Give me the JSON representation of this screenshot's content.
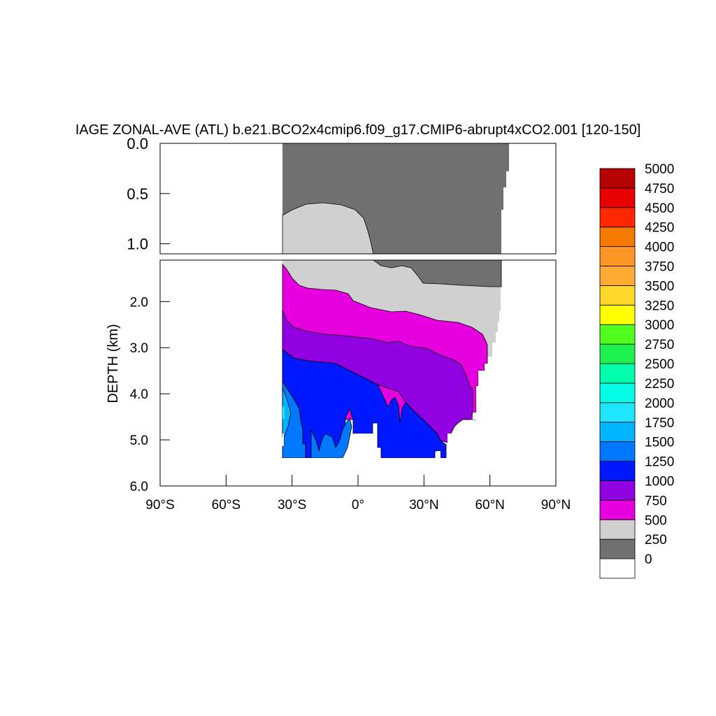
{
  "chart_data": {
    "type": "heatmap",
    "title": "IAGE ZONAL-AVE (ATL) b.e21.BCO2x4cmip6.f09_g17.CMIP6-abrupt4xCO2.001 [120-150]",
    "ylabel": "DEPTH (km)",
    "xlabel": "",
    "xlim": [
      -90,
      90
    ],
    "xticks": [
      "90°S",
      "60°S",
      "30°S",
      "0°",
      "30°N",
      "60°N",
      "90°N"
    ],
    "upper_panel": {
      "ylim": [
        0.0,
        1.1
      ],
      "yticks": [
        "0.0",
        "0.5",
        "1.0"
      ]
    },
    "lower_panel": {
      "ylim": [
        1.1,
        6.0
      ],
      "yticks": [
        "2.0",
        "3.0",
        "4.0",
        "5.0",
        "6.0"
      ]
    },
    "colorbar": {
      "levels": [
        "0",
        "250",
        "500",
        "750",
        "1000",
        "1250",
        "1500",
        "1750",
        "2000",
        "2250",
        "2500",
        "2750",
        "3000",
        "3250",
        "3500",
        "3750",
        "4000",
        "4250",
        "4500",
        "4750",
        "5000"
      ],
      "colors": [
        "#ffffff",
        "#707070",
        "#d0d0d0",
        "#e600e0",
        "#9000e0",
        "#0018ff",
        "#0078ff",
        "#00b4ff",
        "#1ee6ff",
        "#00ffe6",
        "#00ffaa",
        "#1ef050",
        "#50ff1e",
        "#ffff00",
        "#ffd728",
        "#ffaa32",
        "#ff9628",
        "#f57800",
        "#ff2800",
        "#e60000",
        "#b40000"
      ]
    },
    "bands": [
      {
        "value_range": "0-250",
        "color": "#707070",
        "top_km": [
          [
            -34,
            0.0
          ],
          [
            68,
            0.0
          ]
        ],
        "note": "surface to ~0.7-1.7 km"
      },
      {
        "value_range": "250-500",
        "color": "#d0d0d0"
      },
      {
        "value_range": "500-750",
        "color": "#e600e0"
      },
      {
        "value_range": "750-1000",
        "color": "#9000e0"
      },
      {
        "value_range": "1000-1250",
        "color": "#0018ff"
      },
      {
        "value_range": "1250-1500",
        "color": "#0078ff"
      },
      {
        "value_range": "1500-1750",
        "color": "#00b4ff"
      }
    ]
  }
}
